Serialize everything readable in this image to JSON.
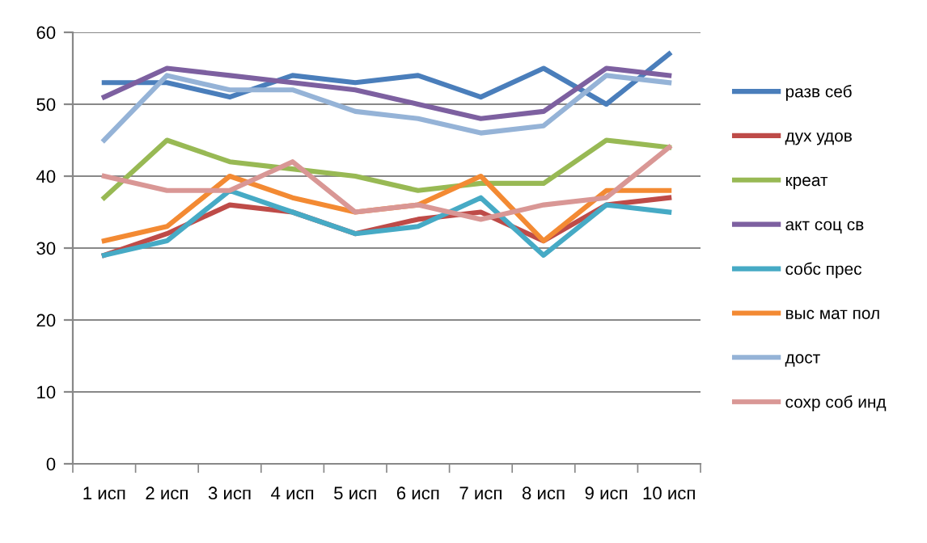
{
  "chart_data": {
    "type": "line",
    "categories": [
      "1 исп",
      "2 исп",
      "3 исп",
      "4 исп",
      "5 исп",
      "6 исп",
      "7 исп",
      "8 исп",
      "9 исп",
      "10 исп"
    ],
    "ylim": [
      0,
      60
    ],
    "yticks": [
      0,
      10,
      20,
      30,
      40,
      50,
      60
    ],
    "grid": "y",
    "legend": "right",
    "marker": "none",
    "line_style": "solid",
    "series": [
      {
        "name": "разв себ",
        "color": "#4a7ebb",
        "values": [
          53,
          53,
          51,
          54,
          53,
          54,
          51,
          55,
          50,
          57
        ]
      },
      {
        "name": "дух удов",
        "color": "#be4b48",
        "values": [
          29,
          32,
          36,
          35,
          32,
          34,
          35,
          31,
          36,
          37
        ]
      },
      {
        "name": "креат",
        "color": "#98b954",
        "values": [
          37,
          45,
          42,
          41,
          40,
          38,
          39,
          39,
          45,
          44
        ]
      },
      {
        "name": "акт соц св",
        "color": "#7d60a0",
        "values": [
          51,
          55,
          54,
          53,
          52,
          50,
          48,
          49,
          55,
          54
        ]
      },
      {
        "name": "собс прес",
        "color": "#46aac5",
        "values": [
          29,
          31,
          38,
          35,
          32,
          33,
          37,
          29,
          36,
          35
        ]
      },
      {
        "name": "выс мат пол",
        "color": "#f38a33",
        "values": [
          31,
          33,
          40,
          37,
          35,
          36,
          40,
          31,
          38,
          38
        ]
      },
      {
        "name": "дост",
        "color": "#95b3d7",
        "values": [
          45,
          54,
          52,
          52,
          49,
          48,
          46,
          47,
          54,
          53
        ]
      },
      {
        "name": "сохр соб инд",
        "color": "#d99795",
        "values": [
          40,
          38,
          38,
          42,
          35,
          36,
          34,
          36,
          37,
          44
        ]
      }
    ]
  }
}
